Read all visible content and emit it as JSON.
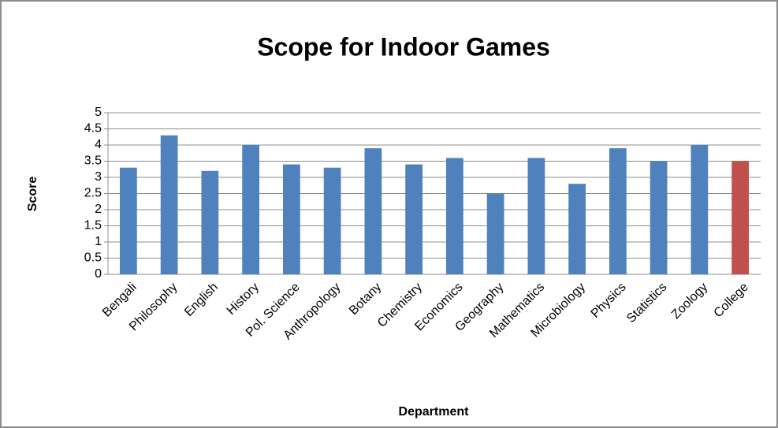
{
  "chart_data": {
    "type": "bar",
    "title": "Scope for Indoor Games",
    "x_label": "Department",
    "y_label": "Score",
    "categories": [
      "Bengali",
      "Philosophy",
      "English",
      "History",
      "Pol. Science",
      "Anthropology",
      "Botany",
      "Chemistry",
      "Economics",
      "Geography",
      "Mathematics",
      "Microbiology",
      "Physics",
      "Statistics",
      "Zoology",
      "College"
    ],
    "values": [
      3.3,
      4.3,
      3.2,
      4.0,
      3.4,
      3.3,
      3.9,
      3.4,
      3.6,
      2.5,
      3.6,
      2.8,
      3.9,
      3.5,
      4.0,
      3.5
    ],
    "colors": [
      "#4f81bd",
      "#4f81bd",
      "#4f81bd",
      "#4f81bd",
      "#4f81bd",
      "#4f81bd",
      "#4f81bd",
      "#4f81bd",
      "#4f81bd",
      "#4f81bd",
      "#4f81bd",
      "#4f81bd",
      "#4f81bd",
      "#4f81bd",
      "#4f81bd",
      "#c0504d"
    ],
    "ylim": [
      0,
      5
    ],
    "yticks": [
      0,
      0.5,
      1,
      1.5,
      2,
      2.5,
      3,
      3.5,
      4,
      4.5,
      5
    ],
    "grid": true
  }
}
